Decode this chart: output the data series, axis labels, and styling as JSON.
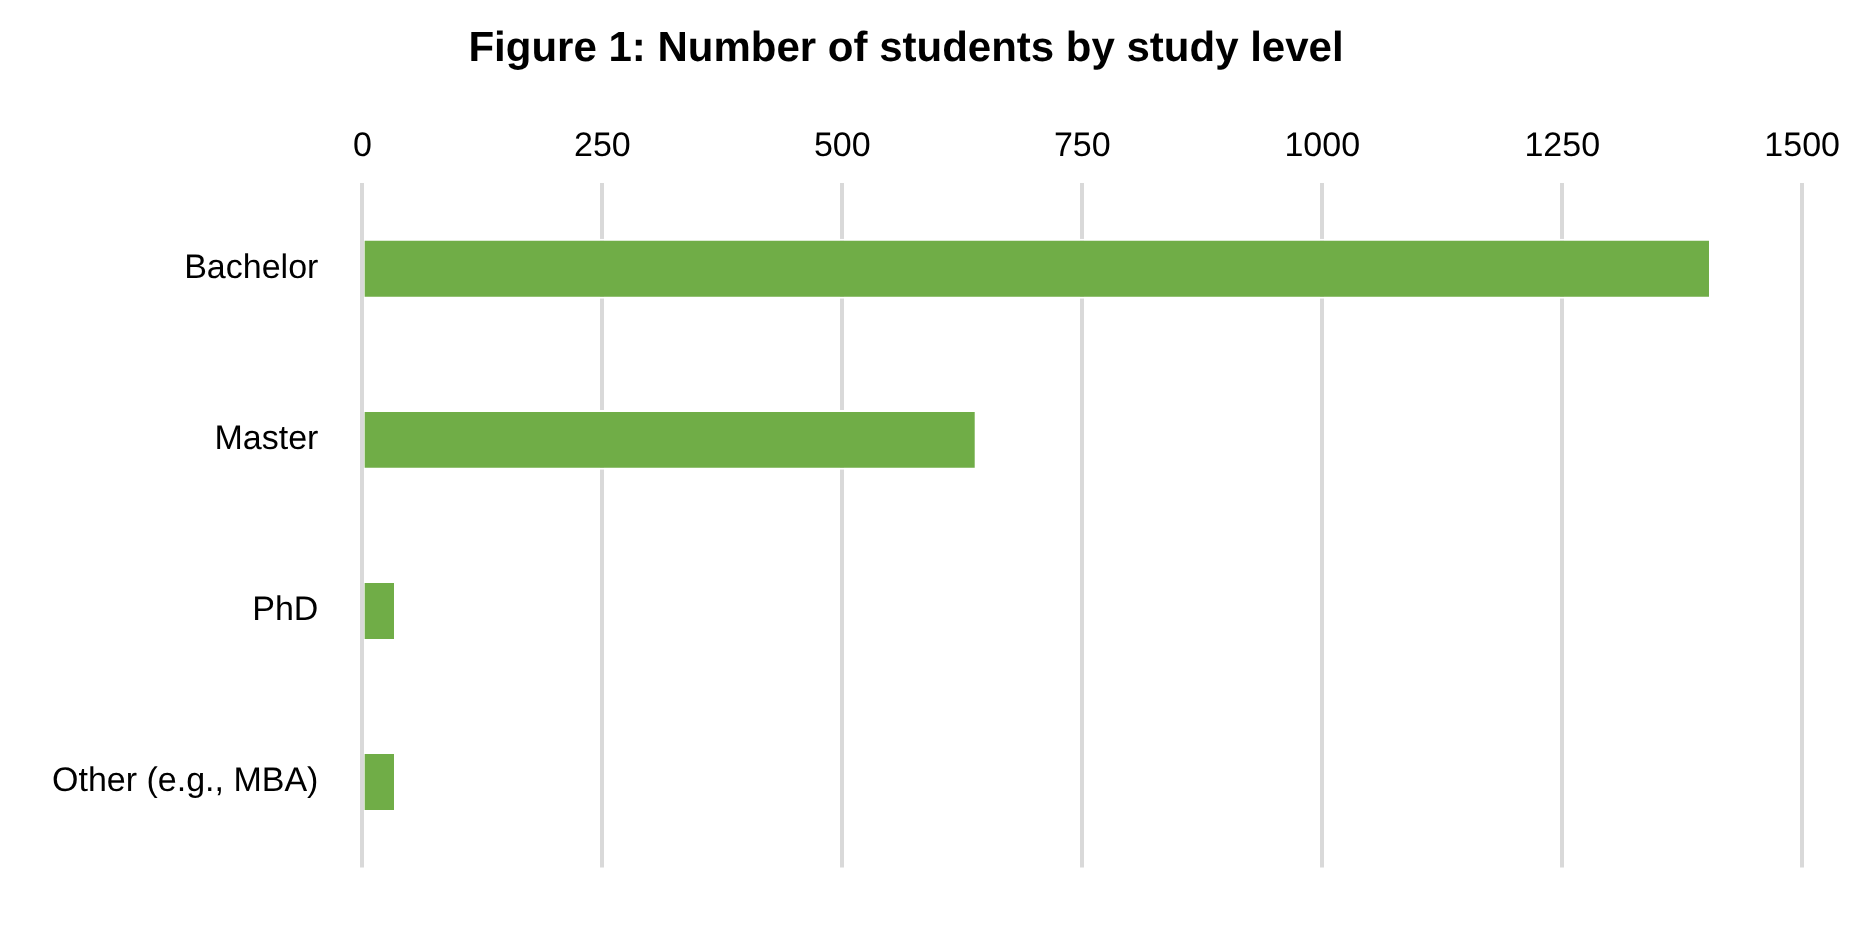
{
  "chart_data": {
    "type": "bar",
    "orientation": "horizontal",
    "title": "Figure 1: Number of students by study level",
    "categories": [
      "Bachelor",
      "Master",
      "PhD",
      "Other (e.g., MBA)"
    ],
    "values": [
      1405,
      640,
      35,
      35
    ],
    "color": "#70ad47",
    "xlim": [
      0,
      1500
    ],
    "xticks": [
      0,
      250,
      500,
      750,
      1000,
      1250,
      1500
    ],
    "grid": "x"
  }
}
